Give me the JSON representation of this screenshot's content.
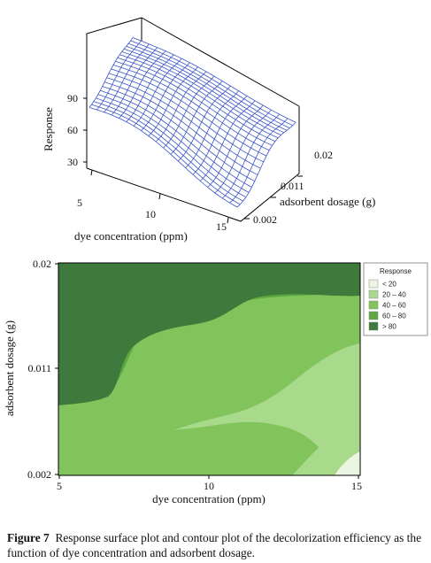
{
  "chart_data": [
    {
      "type": "surface",
      "zlabel": "Response",
      "xlabel": "dye concentration (ppm)",
      "ylabel": "adsorbent dosage (g)",
      "x_ticks": [
        "5",
        "10",
        "15"
      ],
      "y_ticks": [
        "0.002",
        "0.011",
        "0.02"
      ],
      "z_ticks": [
        "30",
        "60",
        "90"
      ],
      "colors": {
        "mesh": "#3a55c8",
        "fill": "#ffffff",
        "frame": "#000000"
      }
    },
    {
      "type": "contour",
      "xlabel": "dye concentration (ppm)",
      "ylabel": "adsorbent dosage (g)",
      "x_ticks": [
        "5",
        "10",
        "15"
      ],
      "y_ticks": [
        "0.002",
        "0.011",
        "0.02"
      ],
      "xlim": [
        5,
        15
      ],
      "ylim": [
        0.002,
        0.02
      ],
      "legend": {
        "title": "Response",
        "position": "right",
        "entries": [
          {
            "label": "<  20",
            "color": "#ebf5e1"
          },
          {
            "label": "20 – 40",
            "color": "#a9d98b"
          },
          {
            "label": "40 – 60",
            "color": "#80c45b"
          },
          {
            "label": "60 – 80",
            "color": "#5ba843"
          },
          {
            "label": ">  80",
            "color": "#3e7a3b"
          }
        ]
      }
    }
  ],
  "caption": {
    "label": "Figure 7",
    "text": "Response surface plot and contour plot of the decolorization efficiency as the function of dye concentration and adsorbent dosage."
  }
}
